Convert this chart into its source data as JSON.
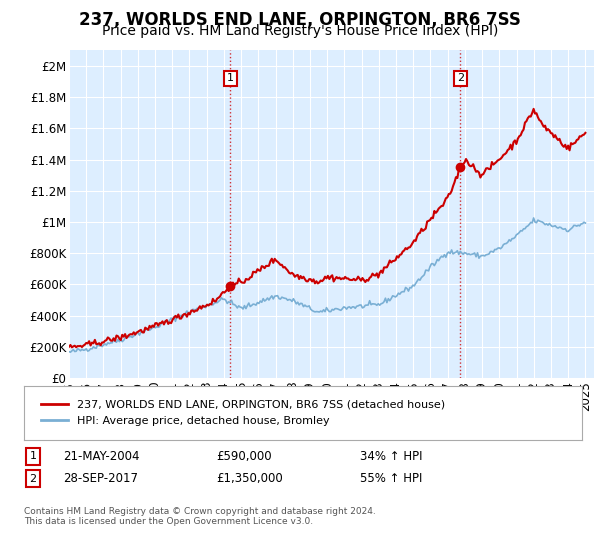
{
  "title": "237, WORLDS END LANE, ORPINGTON, BR6 7SS",
  "subtitle": "Price paid vs. HM Land Registry's House Price Index (HPI)",
  "ylabel_ticks": [
    "£0",
    "£200K",
    "£400K",
    "£600K",
    "£800K",
    "£1M",
    "£1.2M",
    "£1.4M",
    "£1.6M",
    "£1.8M",
    "£2M"
  ],
  "ytick_values": [
    0,
    200000,
    400000,
    600000,
    800000,
    1000000,
    1200000,
    1400000,
    1600000,
    1800000,
    2000000
  ],
  "ylim": [
    0,
    2100000
  ],
  "xlim_start": 1995.0,
  "xlim_end": 2025.5,
  "sale1_x": 2004.38,
  "sale1_y": 590000,
  "sale2_x": 2017.74,
  "sale2_y": 1350000,
  "vline_color": "#cc0000",
  "vline_style": ":",
  "sale_dot_color": "#cc0000",
  "hpi_line_color": "#7aafd4",
  "price_line_color": "#cc0000",
  "legend_price_label": "237, WORLDS END LANE, ORPINGTON, BR6 7SS (detached house)",
  "legend_hpi_label": "HPI: Average price, detached house, Bromley",
  "annotation1_date": "21-MAY-2004",
  "annotation1_price": "£590,000",
  "annotation1_hpi": "34% ↑ HPI",
  "annotation2_date": "28-SEP-2017",
  "annotation2_price": "£1,350,000",
  "annotation2_hpi": "55% ↑ HPI",
  "footer": "Contains HM Land Registry data © Crown copyright and database right 2024.\nThis data is licensed under the Open Government Licence v3.0.",
  "background_color": "#ffffff",
  "plot_bg_color": "#ddeeff",
  "grid_color": "#ffffff",
  "title_fontsize": 12,
  "subtitle_fontsize": 10,
  "tick_fontsize": 8.5
}
